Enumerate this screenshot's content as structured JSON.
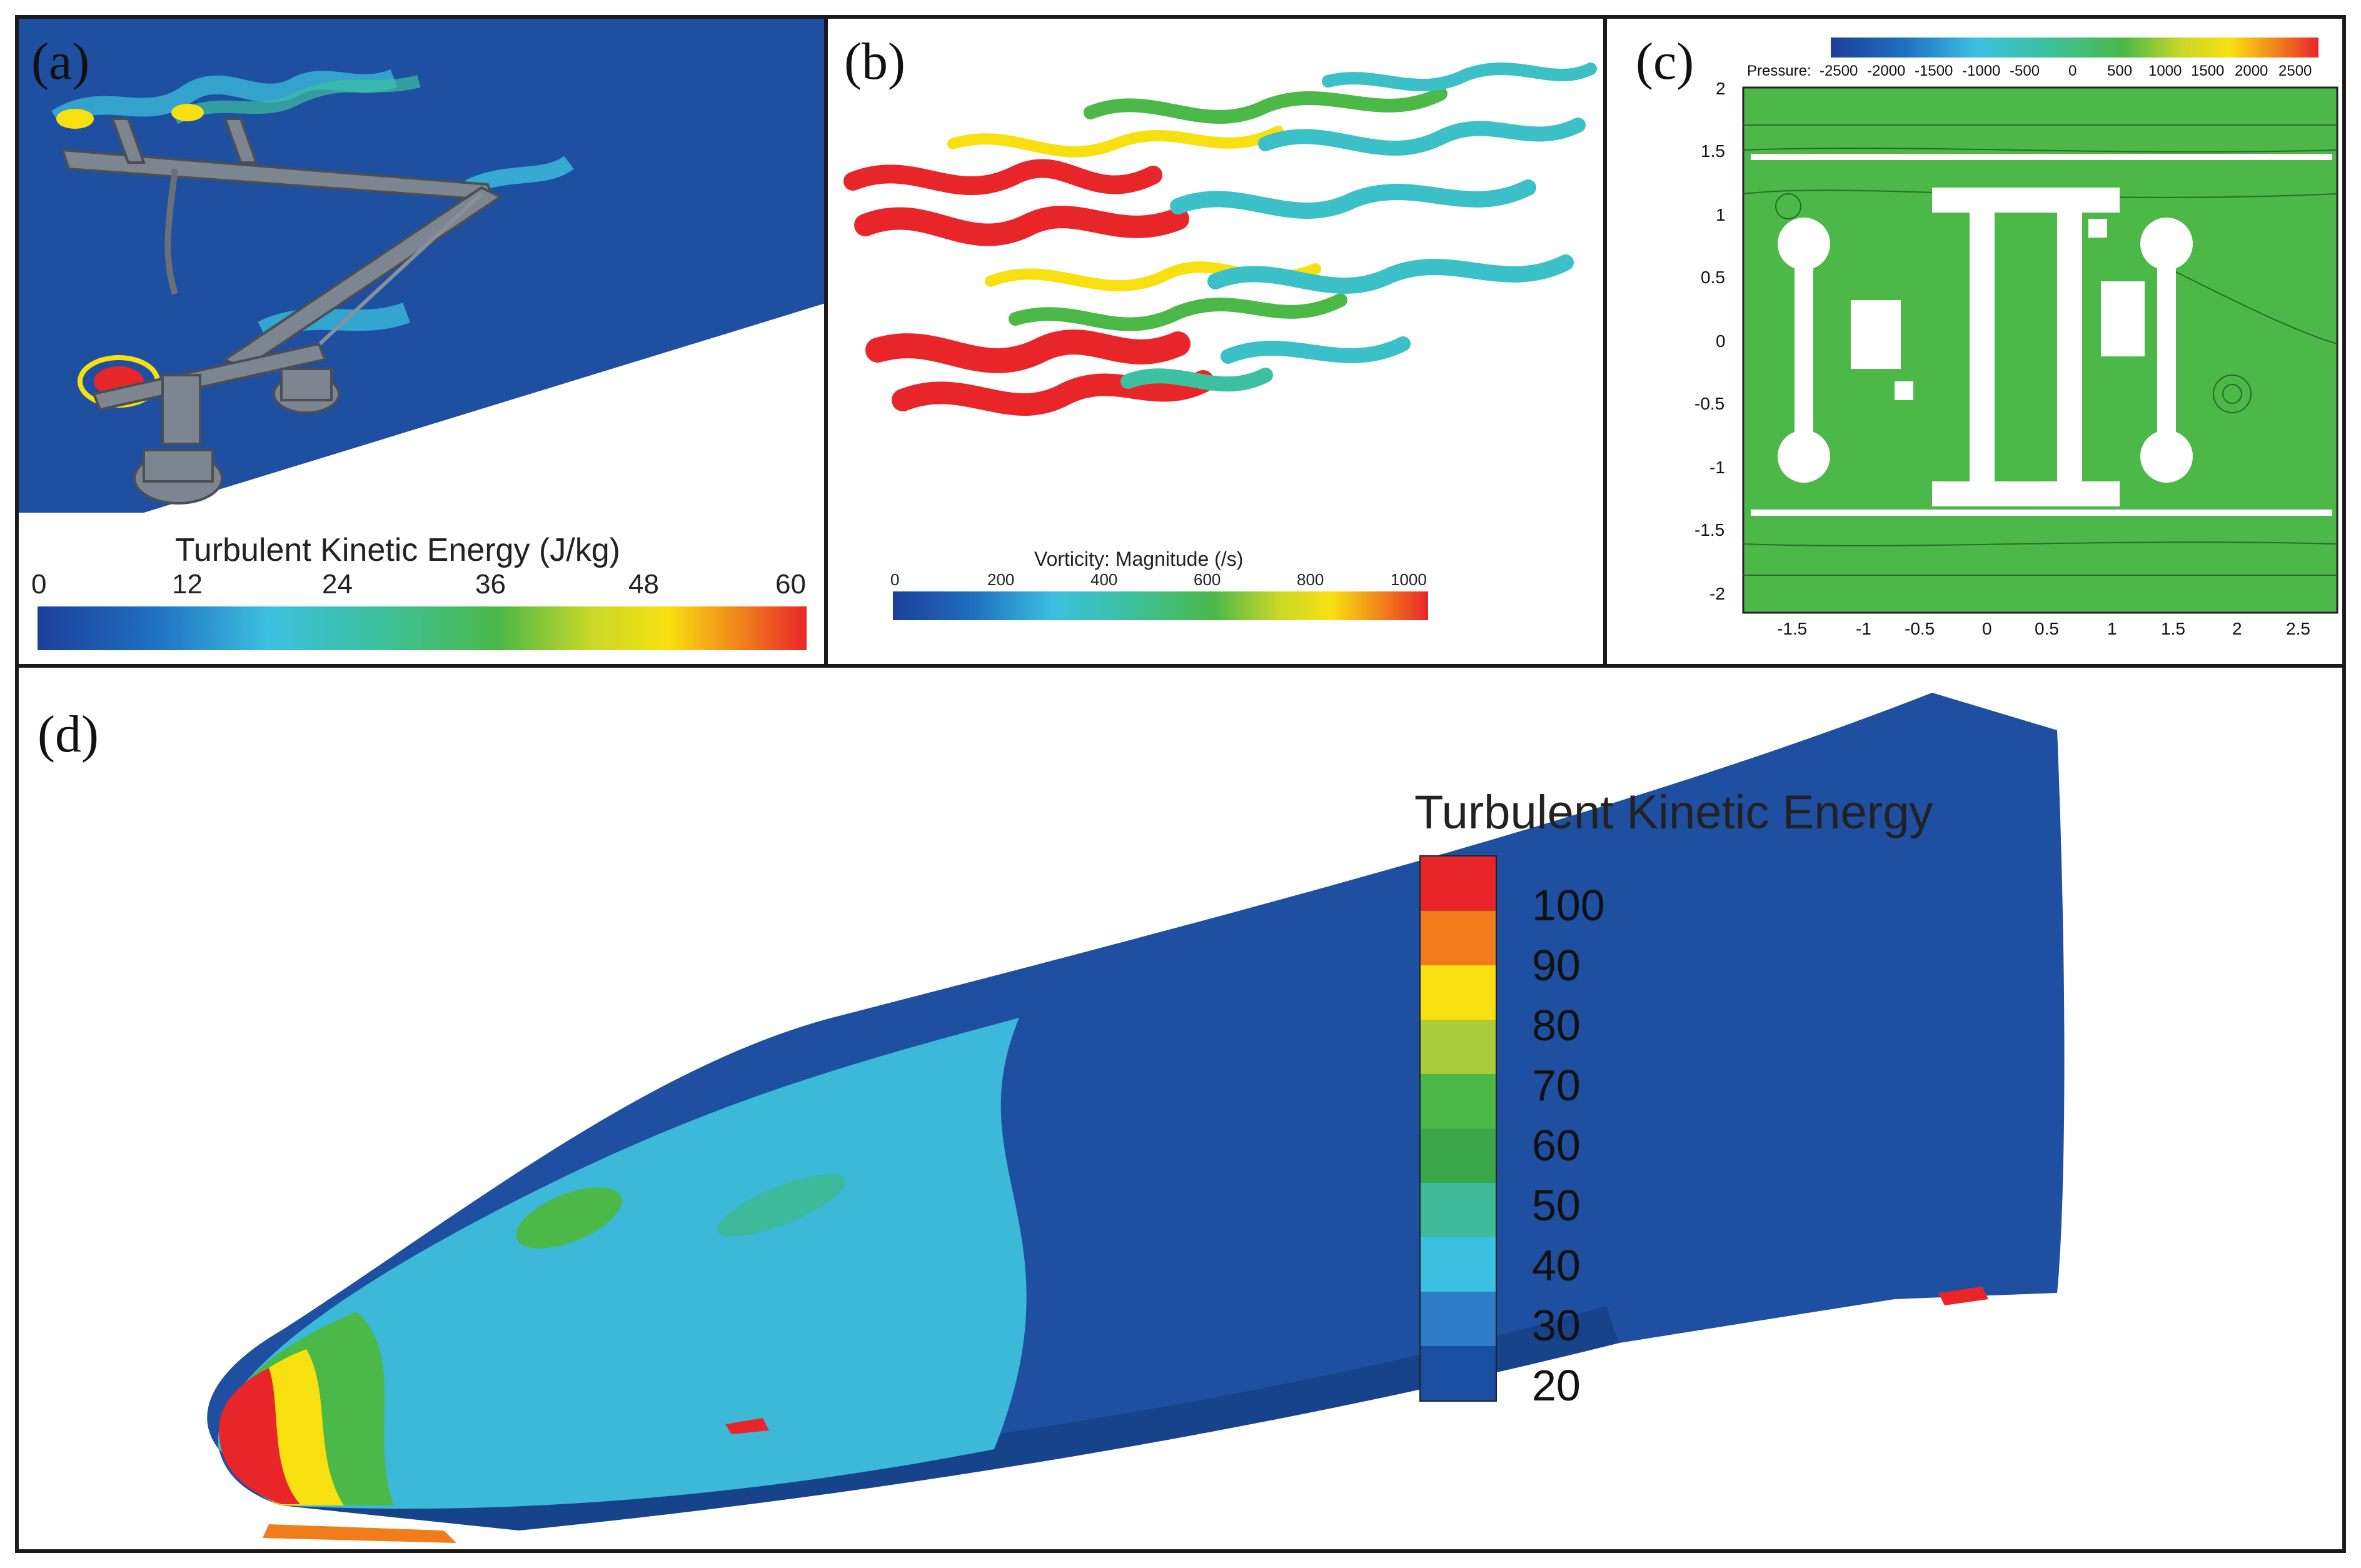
{
  "panels": {
    "a": {
      "label": "(a)",
      "colorbar_title": "Turbulent Kinetic Energy (J/kg)",
      "ticks": [
        "0",
        "12",
        "24",
        "36",
        "48",
        "60"
      ]
    },
    "b": {
      "label": "(b)",
      "colorbar_title": "Vorticity: Magnitude (/s)",
      "ticks": [
        "0",
        "200",
        "400",
        "600",
        "800",
        "1000"
      ]
    },
    "c": {
      "label": "(c)",
      "colorbar_prefix": "Pressure:",
      "colorbar_ticks": [
        "-2500",
        "-2000",
        "-1500",
        "-1000",
        "-500",
        "0",
        "500",
        "1000",
        "1500",
        "2000",
        "2500"
      ],
      "y_ticks": [
        "2",
        "1.5",
        "1",
        "0.5",
        "0",
        "-0.5",
        "-1",
        "-1.5",
        "-2"
      ],
      "x_ticks": [
        "-1.5",
        "-1",
        "-0.5",
        "0",
        "0.5",
        "1",
        "1.5",
        "2",
        "2.5"
      ]
    },
    "d": {
      "label": "(d)",
      "legend_title": "Turbulent Kinetic Energy",
      "legend_values": [
        "100",
        "90",
        "80",
        "70",
        "60",
        "50",
        "40",
        "30",
        "20"
      ]
    }
  },
  "colors": {
    "flow_blue": "#1e4fa0",
    "legend_d": [
      "#e8262a",
      "#f07c1c",
      "#f8e010",
      "#a8cc3a",
      "#4cb848",
      "#3aa84a",
      "#3cba9a",
      "#3cc0e0",
      "#2c7cc8",
      "#1a4ea0"
    ]
  }
}
